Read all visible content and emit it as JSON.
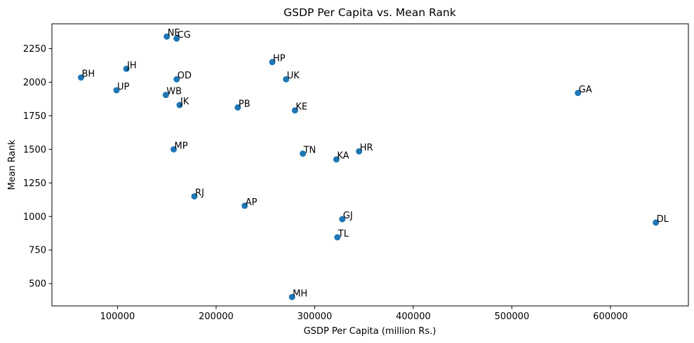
{
  "chart_data": {
    "type": "scatter",
    "title": "GSDP Per Capita vs. Mean Rank",
    "xlabel": "GSDP Per Capita (million Rs.)",
    "ylabel": "Mean Rank",
    "xlim": [
      33500,
      679000
    ],
    "ylim": [
      334,
      2435
    ],
    "xticks": [
      100000,
      200000,
      300000,
      400000,
      500000,
      600000
    ],
    "xtick_labels": [
      "100000",
      "200000",
      "300000",
      "400000",
      "500000",
      "600000"
    ],
    "yticks": [
      500,
      750,
      1000,
      1250,
      1500,
      1750,
      2000,
      2250
    ],
    "ytick_labels": [
      "500",
      "750",
      "1000",
      "1250",
      "1500",
      "1750",
      "2000",
      "2250"
    ],
    "grid": false,
    "marker_color": "#1f77b4",
    "points": [
      {
        "label": "NE",
        "x": 150000,
        "y": 2340
      },
      {
        "label": "CG",
        "x": 160000,
        "y": 2325
      },
      {
        "label": "JH",
        "x": 109000,
        "y": 2100
      },
      {
        "label": "HP",
        "x": 257000,
        "y": 2150
      },
      {
        "label": "BH",
        "x": 63000,
        "y": 2035
      },
      {
        "label": "OD",
        "x": 160000,
        "y": 2022
      },
      {
        "label": "UK",
        "x": 271000,
        "y": 2022
      },
      {
        "label": "UP",
        "x": 99000,
        "y": 1940
      },
      {
        "label": "WB",
        "x": 149000,
        "y": 1905
      },
      {
        "label": "GA",
        "x": 567000,
        "y": 1920
      },
      {
        "label": "JK",
        "x": 163000,
        "y": 1830
      },
      {
        "label": "PB",
        "x": 222000,
        "y": 1812
      },
      {
        "label": "KE",
        "x": 280000,
        "y": 1790
      },
      {
        "label": "MP",
        "x": 157000,
        "y": 1500
      },
      {
        "label": "TN",
        "x": 288000,
        "y": 1468
      },
      {
        "label": "HR",
        "x": 345000,
        "y": 1485
      },
      {
        "label": "KA",
        "x": 322000,
        "y": 1425
      },
      {
        "label": "RJ",
        "x": 178000,
        "y": 1150
      },
      {
        "label": "AP",
        "x": 229000,
        "y": 1080
      },
      {
        "label": "GJ",
        "x": 328000,
        "y": 980
      },
      {
        "label": "DL",
        "x": 646000,
        "y": 955
      },
      {
        "label": "TL",
        "x": 323000,
        "y": 845
      },
      {
        "label": "MH",
        "x": 277000,
        "y": 400
      }
    ]
  }
}
